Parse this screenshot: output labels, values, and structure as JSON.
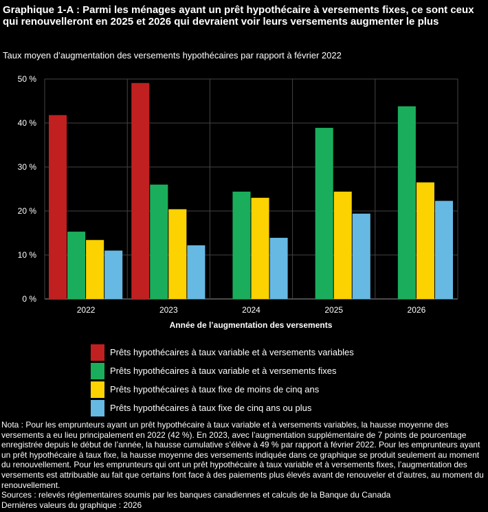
{
  "title": "Graphique 1-A : Parmi les ménages ayant un prêt hypothécaire à versements fixes, ce sont ceux qui renouvelleront en 2025 et 2026 qui devraient voir leurs versements augmenter le plus",
  "subtitle": "Taux moyen d’augmentation des versements hypothécaires par rapport à février 2022",
  "note": "Nota : Pour les emprunteurs ayant un prêt hypothécaire à taux variable et à versements variables, la hausse moyenne des versements a eu lieu principalement en 2022 (42 %). En 2023, avec l’augmentation supplémentaire de 7 points de pourcentage enregistrée depuis le début de l’année, la hausse cumulative s’élève à 49 % par rapport à février 2022. Pour les emprunteurs ayant un prêt hypothécaire à taux fixe, la hausse moyenne des versements indiquée dans ce graphique se produit seulement au moment du renouvellement. Pour les emprunteurs qui ont un prêt hypothécaire à taux variable et à versements fixes, l’augmentation des versements est attribuable au fait que certains font face à des paiements plus élevés avant de renouveler et d’autres, au moment du renouvellement.",
  "sources": "Sources : relevés réglementaires soumis par les banques canadiennes et calculs de la Banque du Canada",
  "last_values": "Dernières valeurs du graphique : 2026",
  "chart_data": {
    "type": "bar",
    "categories": [
      "2022",
      "2023",
      "2024",
      "2025",
      "2026"
    ],
    "xlabel": "Année de l’augmentation des versements",
    "ylabel": "",
    "ylim": [
      0,
      50
    ],
    "yticks": [
      "0 %",
      "10 %",
      "20 %",
      "30 %",
      "40 %",
      "50 %"
    ],
    "grid": true,
    "legend_position": "bottom",
    "series": [
      {
        "name": "Prêts hypothécaires à taux variable et à versements variables",
        "color": "#c0201f",
        "values": [
          41.8,
          49.1,
          null,
          null,
          null
        ]
      },
      {
        "name": "Prêts hypothécaires à taux variable et à versements fixes",
        "color": "#1aae5c",
        "values": [
          15.3,
          26.0,
          24.4,
          38.9,
          43.8
        ]
      },
      {
        "name": "Prêts hypothécaires à taux fixe de moins de cinq ans",
        "color": "#fcd200",
        "values": [
          13.4,
          20.4,
          23.0,
          24.4,
          26.5
        ]
      },
      {
        "name": "Prêts hypothécaires à taux fixe de cinq ans ou plus",
        "color": "#66b9e3",
        "values": [
          11.0,
          12.2,
          13.9,
          19.4,
          22.3
        ]
      }
    ]
  }
}
